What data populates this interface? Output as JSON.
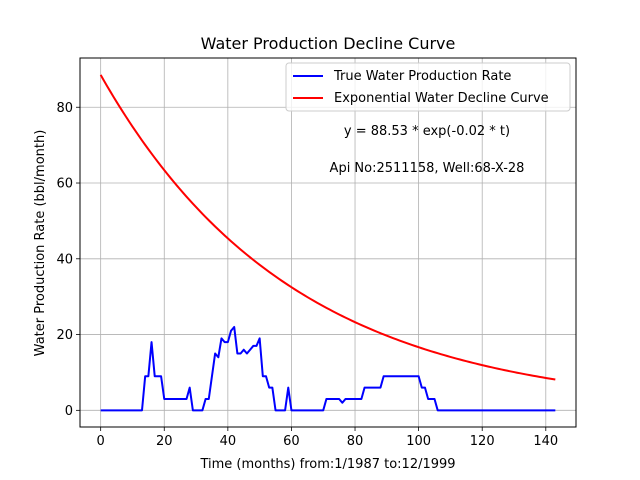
{
  "chart_data": {
    "type": "line",
    "title": "Water Production Decline Curve",
    "xlabel": "Time (months) from:1/1987 to:12/1999",
    "ylabel": "Water Production Rate (bbl/month)",
    "xlim": [
      -6.5,
      149.5
    ],
    "ylim": [
      -4.4,
      93.0
    ],
    "xticks": [
      0,
      20,
      40,
      60,
      80,
      100,
      120,
      140
    ],
    "yticks": [
      0,
      20,
      40,
      60,
      80
    ],
    "grid": true,
    "legend_position": "top-right",
    "series": [
      {
        "name": "True Water Production Rate",
        "color": "#0000ff",
        "x": [
          0,
          1,
          2,
          3,
          4,
          5,
          6,
          7,
          8,
          9,
          10,
          11,
          12,
          13,
          14,
          15,
          16,
          17,
          18,
          19,
          20,
          21,
          22,
          23,
          24,
          25,
          26,
          27,
          28,
          29,
          30,
          31,
          32,
          33,
          34,
          35,
          36,
          37,
          38,
          39,
          40,
          41,
          42,
          43,
          44,
          45,
          46,
          47,
          48,
          49,
          50,
          51,
          52,
          53,
          54,
          55,
          56,
          57,
          58,
          59,
          60,
          61,
          62,
          63,
          64,
          65,
          66,
          67,
          68,
          69,
          70,
          71,
          72,
          73,
          74,
          75,
          76,
          77,
          78,
          79,
          80,
          81,
          82,
          83,
          84,
          85,
          86,
          87,
          88,
          89,
          90,
          91,
          92,
          93,
          94,
          95,
          96,
          97,
          98,
          99,
          100,
          101,
          102,
          103,
          104,
          105,
          106,
          107,
          108,
          109,
          110,
          111,
          112,
          113,
          114,
          115,
          116,
          117,
          118,
          119,
          120,
          121,
          122,
          123,
          124,
          125,
          126,
          127,
          128,
          129,
          130,
          131,
          132,
          133,
          134,
          135,
          136,
          137,
          138,
          139,
          140,
          141,
          142,
          143
        ],
        "values": [
          0,
          0,
          0,
          0,
          0,
          0,
          0,
          0,
          0,
          0,
          0,
          0,
          0,
          0,
          9,
          9,
          18,
          9,
          9,
          9,
          3,
          3,
          3,
          3,
          3,
          3,
          3,
          3,
          6,
          0,
          0,
          0,
          0,
          3,
          3,
          9,
          15,
          14,
          19,
          18,
          18,
          21,
          22,
          15,
          15,
          16,
          15,
          16,
          17,
          17,
          19,
          9,
          9,
          6,
          6,
          0,
          0,
          0,
          0,
          6,
          0,
          0,
          0,
          0,
          0,
          0,
          0,
          0,
          0,
          0,
          0,
          3,
          3,
          3,
          3,
          3,
          2,
          3,
          3,
          3,
          3,
          3,
          3,
          6,
          6,
          6,
          6,
          6,
          6,
          9,
          9,
          9,
          9,
          9,
          9,
          9,
          9,
          9,
          9,
          9,
          9,
          6,
          6,
          3,
          3,
          3,
          0,
          0,
          0,
          0,
          0,
          0,
          0,
          0,
          0,
          0,
          0,
          0,
          0,
          0,
          0,
          0,
          0,
          0,
          0,
          0,
          0,
          0,
          0,
          0,
          0,
          0,
          0,
          0,
          0,
          0,
          0,
          0,
          0,
          0,
          0,
          0,
          0,
          0
        ]
      },
      {
        "name": "Exponential Water Decline Curve",
        "color": "#ff0000",
        "equation": {
          "a": 88.53,
          "b": 0.0167
        },
        "x_start": 0,
        "x_end": 143
      }
    ],
    "annotations": [
      "y = 88.53 * exp(-0.02 * t)",
      "Api No:2511158, Well:68-X-28"
    ]
  }
}
